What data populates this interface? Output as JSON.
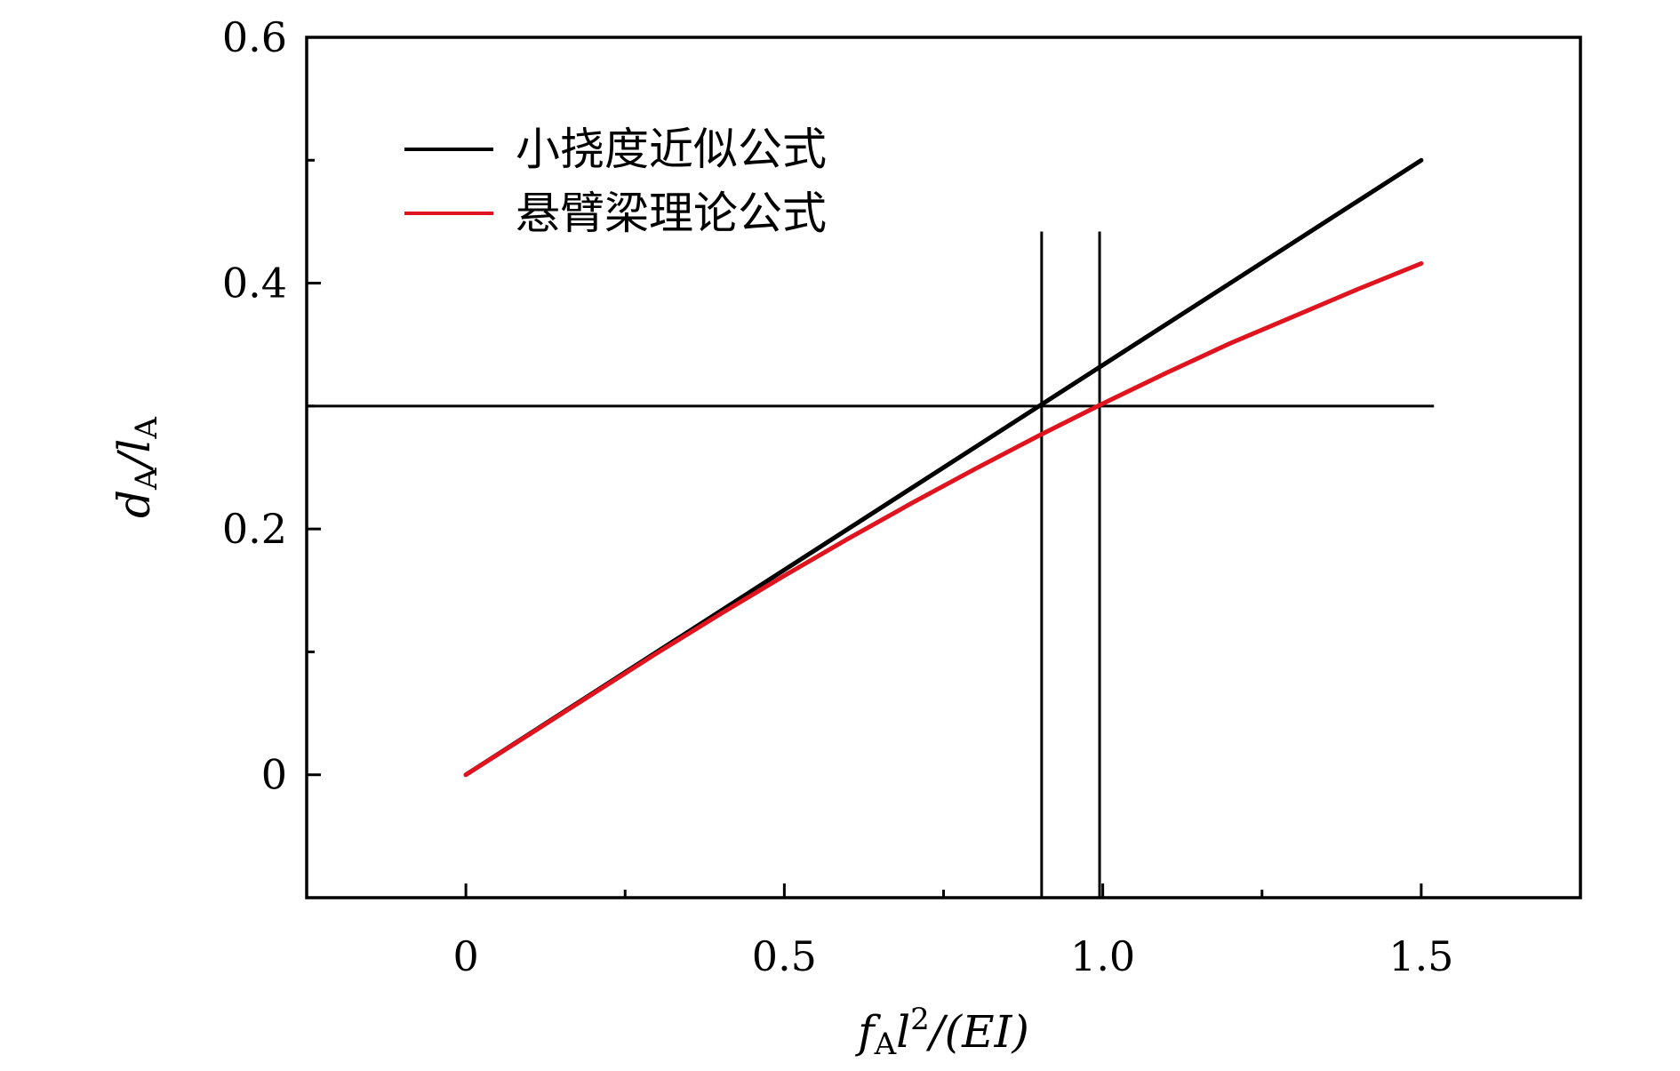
{
  "chart_data": {
    "type": "line",
    "xlabel": {
      "base": "f",
      "sub": "A",
      "mid": "l",
      "sup": "2",
      "tail": "/(EI)"
    },
    "ylabel": {
      "base": "d",
      "sub": "A",
      "mid": "/l",
      "sub2": "A"
    },
    "xlim": [
      -0.25,
      1.75
    ],
    "ylim": [
      -0.1,
      0.6
    ],
    "x_ticks": [
      0,
      0.5,
      1.0,
      1.5
    ],
    "x_tick_labels": [
      "0",
      "0.5",
      "1.0",
      "1.5"
    ],
    "x_minor_ticks": [
      0.25,
      0.75,
      1.25
    ],
    "y_ticks": [
      0,
      0.2,
      0.4,
      0.6
    ],
    "y_tick_labels": [
      "0",
      "0.2",
      "0.4",
      "0.6"
    ],
    "y_minor_ticks": [
      0.1,
      0.3,
      0.5
    ],
    "grid": false,
    "legend_position": "top-left",
    "series": [
      {
        "name": "小挠度近似公式",
        "color": "#000000",
        "x": [
          0,
          1.5
        ],
        "y": [
          0,
          0.5
        ]
      },
      {
        "name": "悬臂梁理论公式",
        "color": "#e0141e",
        "x": [
          0,
          0.1,
          0.2,
          0.3,
          0.4,
          0.5,
          0.6,
          0.7,
          0.8,
          0.9,
          1.0,
          1.1,
          1.2,
          1.3,
          1.4,
          1.5
        ],
        "y": [
          0,
          0.033,
          0.066,
          0.099,
          0.131,
          0.162,
          0.192,
          0.221,
          0.249,
          0.276,
          0.302,
          0.327,
          0.351,
          0.373,
          0.395,
          0.416
        ]
      }
    ],
    "reference_lines": {
      "horizontal": [
        {
          "y": 0.3,
          "x_from": -0.25,
          "x_to": 1.52
        }
      ],
      "vertical": [
        {
          "x": 0.904,
          "y_from": -0.1,
          "y_to": 0.442
        },
        {
          "x": 0.995,
          "y_from": -0.1,
          "y_to": 0.442
        }
      ]
    }
  }
}
